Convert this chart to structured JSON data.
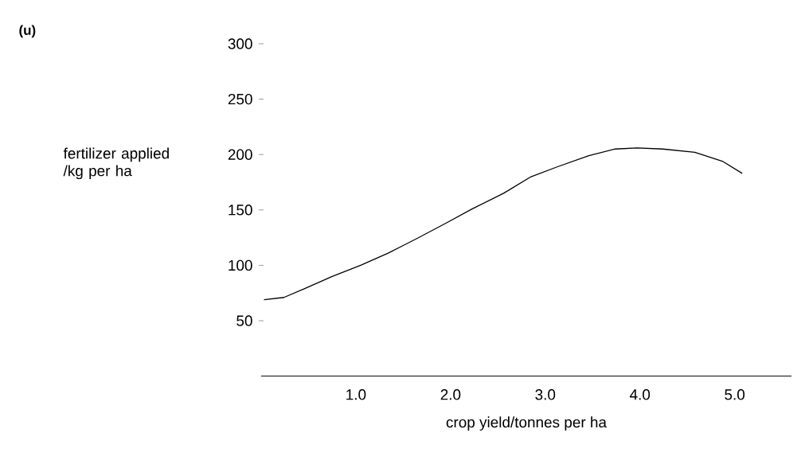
{
  "chart_data": {
    "type": "line",
    "xlabel": "crop yield/tonnes per ha",
    "ylabel": "fertilizer applied /kg per ha",
    "annotations": [
      "(u)"
    ],
    "x": [
      0.03,
      0.24,
      0.46,
      0.75,
      1.05,
      1.34,
      1.64,
      1.95,
      2.23,
      2.56,
      2.85,
      3.13,
      3.46,
      3.74,
      3.97,
      4.24,
      4.58,
      4.87,
      5.08
    ],
    "series": [
      {
        "color": "#000000",
        "values": [
          69,
          71,
          79,
          90,
          100,
          111,
          124,
          138,
          151,
          165,
          180,
          189,
          199,
          205,
          206,
          205,
          202,
          194,
          183
        ]
      }
    ],
    "xlim": [
      0,
      5.6
    ],
    "ylim": [
      0,
      300
    ],
    "xticks": [
      {
        "value": 1,
        "label": "1.0"
      },
      {
        "value": 2,
        "label": "2.0"
      },
      {
        "value": 3,
        "label": "3.0"
      },
      {
        "value": 4,
        "label": "4.0"
      },
      {
        "value": 5,
        "label": "5.0"
      }
    ],
    "yticks": [
      50,
      100,
      150,
      200,
      250,
      300
    ],
    "marker": "none",
    "line_style": "solid"
  }
}
